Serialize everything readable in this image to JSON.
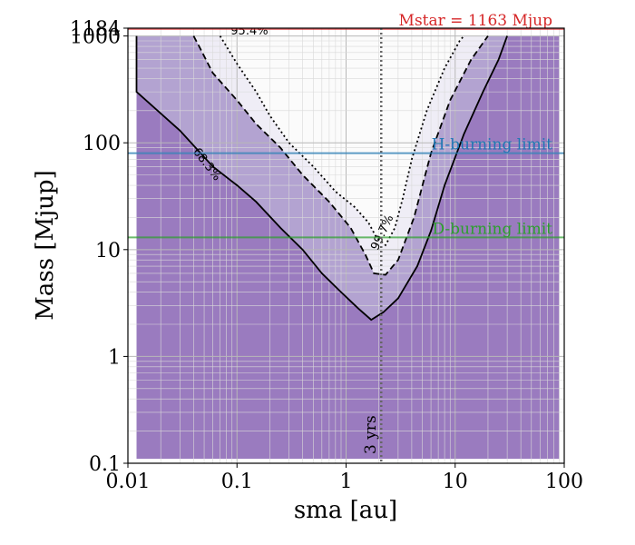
{
  "chart_data": {
    "type": "heatmap",
    "title": "",
    "xlabel": "sma [au]",
    "ylabel": "Mass [Mjup]",
    "xscale": "log",
    "yscale": "log",
    "xlim": [
      0.01,
      100
    ],
    "ylim": [
      0.1,
      1184
    ],
    "xticks": [
      {
        "value": 0.01,
        "label": "0.01"
      },
      {
        "value": 0.1,
        "label": "0.1"
      },
      {
        "value": 1,
        "label": "1"
      },
      {
        "value": 10,
        "label": "10"
      },
      {
        "value": 100,
        "label": "100"
      }
    ],
    "yticks": [
      {
        "value": 0.1,
        "label": "0.1"
      },
      {
        "value": 1,
        "label": "1"
      },
      {
        "value": 10,
        "label": "10"
      },
      {
        "value": 100,
        "label": "100"
      },
      {
        "value": 1000,
        "label": "1000"
      },
      {
        "value": 1184,
        "label": "1184"
      }
    ],
    "grid": true,
    "colormap": {
      "low": "#9a7bbf",
      "high": "#fbfbfb"
    },
    "contours": [
      {
        "label": "68.3%",
        "style": "solid",
        "label_at": {
          "x": 0.05,
          "y": 60
        },
        "points": [
          [
            0.012,
            1000
          ],
          [
            0.012,
            300
          ],
          [
            0.03,
            130
          ],
          [
            0.06,
            60
          ],
          [
            0.1,
            40
          ],
          [
            0.15,
            28
          ],
          [
            0.25,
            16
          ],
          [
            0.4,
            10
          ],
          [
            0.6,
            6
          ],
          [
            0.9,
            4
          ],
          [
            1.3,
            2.8
          ],
          [
            1.7,
            2.2
          ],
          [
            2.2,
            2.6
          ],
          [
            3,
            3.5
          ],
          [
            4.5,
            7
          ],
          [
            6,
            15
          ],
          [
            8,
            40
          ],
          [
            12,
            120
          ],
          [
            18,
            300
          ],
          [
            25,
            600
          ],
          [
            30,
            1000
          ]
        ]
      },
      {
        "label": "95.4%",
        "style": "dashed",
        "label_at": {
          "x": 0.13,
          "y": 1030
        },
        "points": [
          [
            0.04,
            1000
          ],
          [
            0.045,
            800
          ],
          [
            0.06,
            450
          ],
          [
            0.1,
            250
          ],
          [
            0.15,
            150
          ],
          [
            0.25,
            90
          ],
          [
            0.4,
            50
          ],
          [
            0.7,
            28
          ],
          [
            1.1,
            16
          ],
          [
            1.5,
            9
          ],
          [
            1.8,
            6
          ],
          [
            2.3,
            5.8
          ],
          [
            3,
            8
          ],
          [
            4.2,
            20
          ],
          [
            6,
            80
          ],
          [
            9,
            250
          ],
          [
            14,
            600
          ],
          [
            20,
            1000
          ]
        ]
      },
      {
        "label": "99.7%",
        "style": "dotted",
        "label_at": {
          "x": 2.3,
          "y": 14
        },
        "points": [
          [
            0.07,
            1000
          ],
          [
            0.08,
            800
          ],
          [
            0.1,
            550
          ],
          [
            0.15,
            300
          ],
          [
            0.2,
            180
          ],
          [
            0.3,
            100
          ],
          [
            0.5,
            60
          ],
          [
            0.8,
            35
          ],
          [
            1.2,
            25
          ],
          [
            1.6,
            18
          ],
          [
            1.9,
            13
          ],
          [
            2.3,
            11
          ],
          [
            2.8,
            16
          ],
          [
            3.3,
            30
          ],
          [
            4,
            70
          ],
          [
            5.5,
            200
          ],
          [
            8,
            500
          ],
          [
            11,
            900
          ],
          [
            12,
            1000
          ]
        ]
      }
    ],
    "reference_lines": [
      {
        "orientation": "horizontal",
        "value": 1163,
        "label": "Mstar = 1163 Mjup",
        "color": "#d62728"
      },
      {
        "orientation": "horizontal",
        "value": 80,
        "label": "H-burning limit",
        "color": "#1f77b4"
      },
      {
        "orientation": "horizontal",
        "value": 13,
        "label": "D-burning limit",
        "color": "#2ca02c"
      },
      {
        "orientation": "vertical",
        "value": 2.1,
        "label": "3 yrs",
        "color": "#666666"
      }
    ]
  }
}
